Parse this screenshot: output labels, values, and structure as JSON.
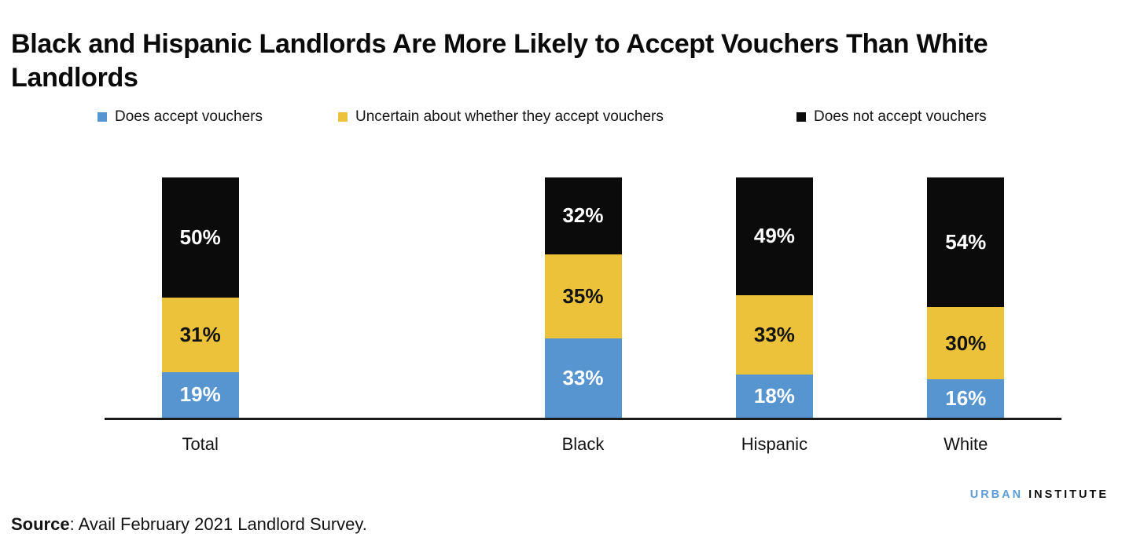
{
  "title": "Black and Hispanic Landlords Are More Likely to Accept Vouchers Than White Landlords",
  "legend": {
    "items": [
      {
        "label": "Does accept vouchers",
        "color": "#5795D1"
      },
      {
        "label": "Uncertain about whether they accept vouchers",
        "color": "#ECC23A"
      },
      {
        "label": "Does not accept vouchers",
        "color": "#0B0B0B"
      }
    ]
  },
  "chart_data": {
    "type": "bar",
    "stacked": true,
    "unit": "%",
    "title": "Black and Hispanic Landlords Are More Likely to Accept Vouchers Than White Landlords",
    "categories": [
      "Total",
      "Black",
      "Hispanic",
      "White"
    ],
    "series": [
      {
        "name": "Does accept vouchers",
        "color": "#5795D1",
        "label_color": "#FFFFFF",
        "values": [
          19,
          33,
          18,
          16
        ]
      },
      {
        "name": "Uncertain about whether they accept vouchers",
        "color": "#ECC23A",
        "label_color": "#131313",
        "values": [
          31,
          35,
          33,
          30
        ]
      },
      {
        "name": "Does not accept vouchers",
        "color": "#0B0B0B",
        "label_color": "#FFFFFF",
        "values": [
          50,
          32,
          49,
          54
        ]
      }
    ],
    "ylim": [
      0,
      100
    ],
    "grid": false,
    "legend_position": "top",
    "layout": {
      "slot_count": 5,
      "category_slots": [
        0,
        2,
        3,
        4
      ]
    }
  },
  "source": {
    "label": "Source",
    "text": ": Avail February 2021 Landlord Survey."
  },
  "logo": {
    "part1": "URBAN",
    "part2": "INSTITUTE",
    "part1_color": "#5B9CD6",
    "part2_color": "#0E0E0E"
  },
  "colors": {
    "axis": "#1A1A1A",
    "title": "#0A0A0A"
  }
}
